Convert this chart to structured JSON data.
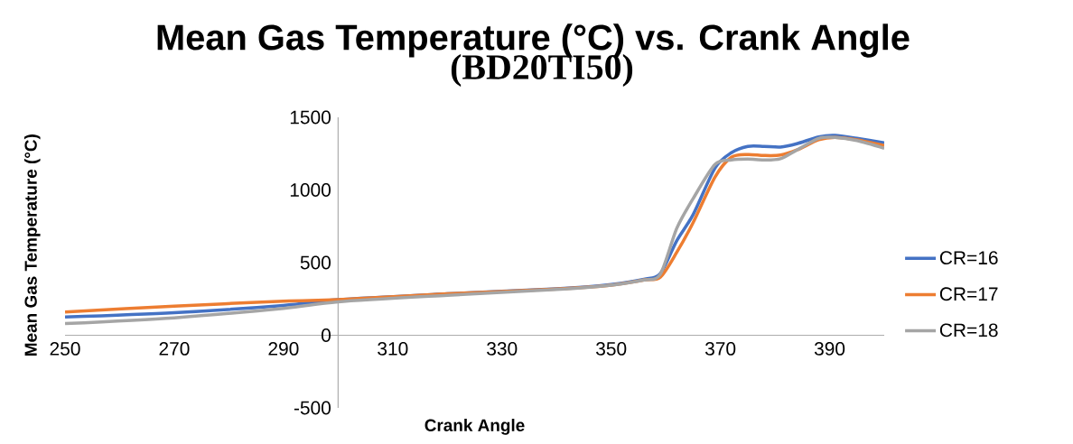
{
  "chart_data": {
    "type": "line",
    "title": "Mean Gas Temperature (°C) vs. Crank Angle",
    "subtitle": "(BD20TI50)",
    "xlabel": "Crank Angle",
    "ylabel": "Mean Gas Temperature (°C)",
    "x": [
      250,
      270,
      290,
      300,
      320,
      340,
      350,
      356,
      359,
      362,
      365,
      369,
      372,
      375,
      378,
      381,
      384,
      388,
      391,
      395,
      400
    ],
    "series": [
      {
        "name": "CR=16",
        "color": "#4472c4",
        "values": [
          125,
          155,
          205,
          245,
          285,
          320,
          350,
          385,
          425,
          650,
          830,
          1150,
          1256,
          1300,
          1300,
          1295,
          1318,
          1365,
          1375,
          1355,
          1325
        ]
      },
      {
        "name": "CR=17",
        "color": "#ed7d31",
        "values": [
          160,
          200,
          235,
          245,
          285,
          318,
          345,
          380,
          400,
          570,
          775,
          1088,
          1225,
          1244,
          1237,
          1240,
          1275,
          1345,
          1362,
          1345,
          1306
        ]
      },
      {
        "name": "CR=18",
        "color": "#a5a5a5",
        "values": [
          80,
          120,
          185,
          230,
          275,
          315,
          345,
          380,
          420,
          735,
          940,
          1175,
          1206,
          1212,
          1206,
          1215,
          1275,
          1355,
          1362,
          1340,
          1287
        ]
      }
    ],
    "xlim": [
      250,
      400
    ],
    "ylim": [
      -500,
      1500
    ],
    "xticks": [
      250,
      270,
      290,
      310,
      330,
      350,
      370,
      390
    ],
    "yticks": [
      -500,
      0,
      500,
      1000,
      1500
    ],
    "legend": "right"
  }
}
